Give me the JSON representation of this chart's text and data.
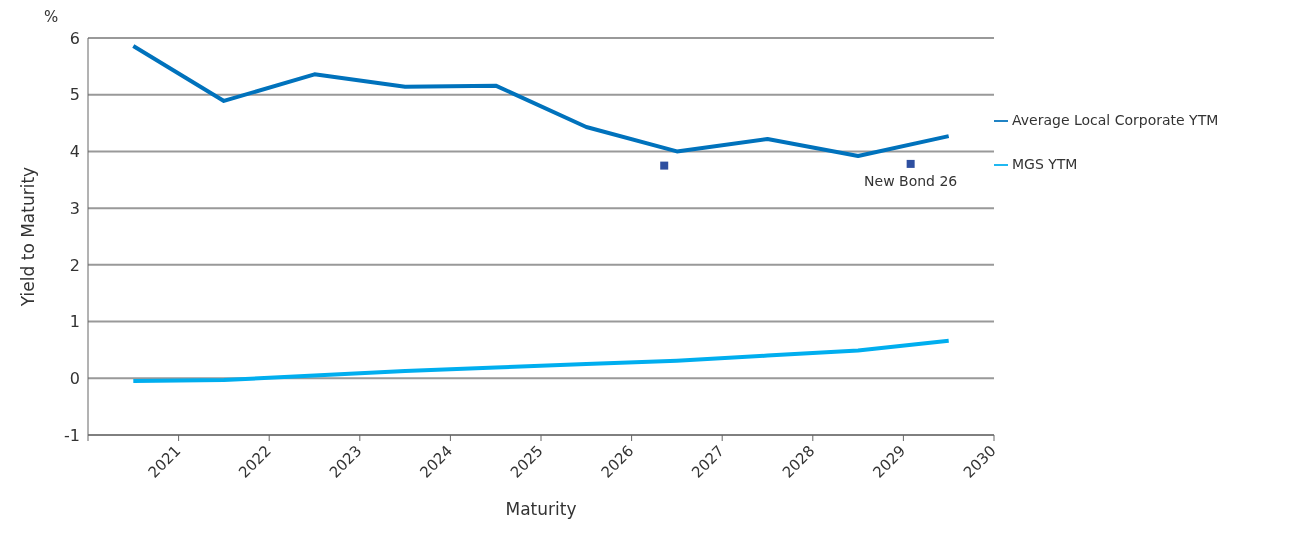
{
  "chart_data": {
    "type": "line",
    "xlabel": "Maturity",
    "ylabel": "Yield to Maturity",
    "annotations": [
      "%",
      {
        "text": "New Bond 26",
        "x": 2029.08,
        "y": 3.78
      }
    ],
    "xlim": [
      2020,
      2030
    ],
    "xticks": [
      {
        "value": 2020,
        "label": null
      },
      2021,
      2022,
      2023,
      2024,
      2025,
      2026,
      2027,
      2028,
      2029,
      2030
    ],
    "ylim": [
      -1,
      6
    ],
    "yticks": [
      -1,
      0,
      1,
      2,
      3,
      4,
      5,
      6
    ],
    "grid": "y",
    "legend": "right",
    "marker": "none",
    "series": [
      {
        "name": "MGS YTM",
        "color": "#00aeef",
        "x": [
          2020.5,
          2021.5,
          2022.5,
          2023.5,
          2024.5,
          2025.5,
          2026.5,
          2027.5,
          2028.5,
          2029.5
        ],
        "values": [
          -0.05,
          -0.03,
          0.05,
          0.13,
          0.19,
          0.25,
          0.31,
          0.4,
          0.49,
          0.66
        ]
      },
      {
        "name": "Average Local Corporate YTM",
        "color": "#0072bc",
        "x": [
          2020.5,
          2021.5,
          2022.5,
          2023.5,
          2024.5,
          2025.5,
          2026.5,
          2027.5,
          2028.5,
          2029.5
        ],
        "values": [
          5.86,
          4.89,
          5.36,
          5.14,
          5.16,
          4.43,
          4.0,
          4.22,
          3.92,
          4.27
        ]
      },
      {
        "type": "scatter",
        "marker": "square",
        "color": "#2e4fa0",
        "x": [
          2026.36,
          2029.08
        ],
        "values": [
          3.75,
          3.78
        ]
      }
    ]
  }
}
